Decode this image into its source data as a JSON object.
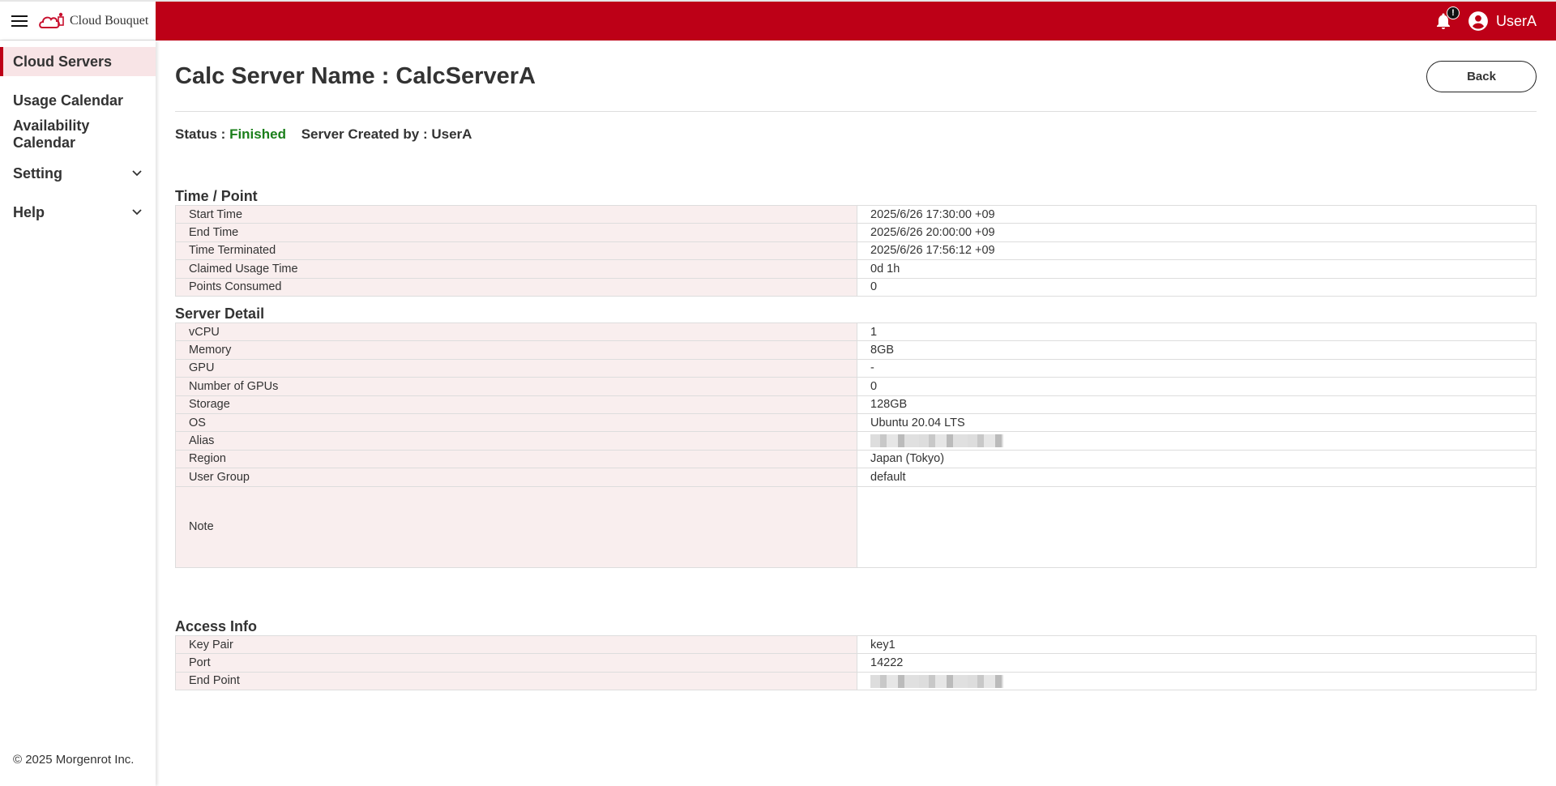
{
  "app": {
    "name": "Cloud Bouquet",
    "brand_color": "#bd0017"
  },
  "header": {
    "notification_badge": "!",
    "user": "UserA"
  },
  "sidebar": {
    "items": [
      {
        "label": "Cloud Servers",
        "active": true
      },
      {
        "label": "Usage Calendar"
      },
      {
        "label": "Availability Calendar"
      },
      {
        "label": "Setting",
        "expandable": true
      },
      {
        "label": "Help",
        "expandable": true
      }
    ],
    "footer": "© 2025 Morgenrot Inc."
  },
  "page": {
    "title": "Calc Server Name : CalcServerA",
    "back_label": "Back",
    "status_label": "Status : ",
    "status_value": "Finished",
    "status_color": "#1a7f1a",
    "created_by": "Server Created by : UserA"
  },
  "sections": {
    "time": {
      "title": "Time / Point",
      "rows": [
        {
          "k": "Start Time",
          "v": "2025/6/26 17:30:00 +09"
        },
        {
          "k": "End Time",
          "v": "2025/6/26 20:00:00 +09"
        },
        {
          "k": "Time Terminated",
          "v": "2025/6/26 17:56:12 +09"
        },
        {
          "k": "Claimed Usage Time",
          "v": "0d 1h"
        },
        {
          "k": "Points Consumed",
          "v": "0"
        }
      ]
    },
    "detail": {
      "title": "Server Detail",
      "rows": [
        {
          "k": "vCPU",
          "v": "1"
        },
        {
          "k": "Memory",
          "v": "8GB"
        },
        {
          "k": "GPU",
          "v": "-"
        },
        {
          "k": "Number of GPUs",
          "v": "0"
        },
        {
          "k": "Storage",
          "v": "128GB"
        },
        {
          "k": "OS",
          "v": "Ubuntu 20.04 LTS"
        },
        {
          "k": "Alias",
          "v": null,
          "redacted": true
        },
        {
          "k": "Region",
          "v": "Japan (Tokyo)"
        },
        {
          "k": "User Group",
          "v": "default"
        },
        {
          "k": "Note",
          "v": "",
          "tall": true
        }
      ]
    },
    "access": {
      "title": "Access Info",
      "rows": [
        {
          "k": "Key Pair",
          "v": "key1"
        },
        {
          "k": "Port",
          "v": "14222"
        },
        {
          "k": "End Point",
          "v": null,
          "redacted": true
        }
      ]
    }
  }
}
